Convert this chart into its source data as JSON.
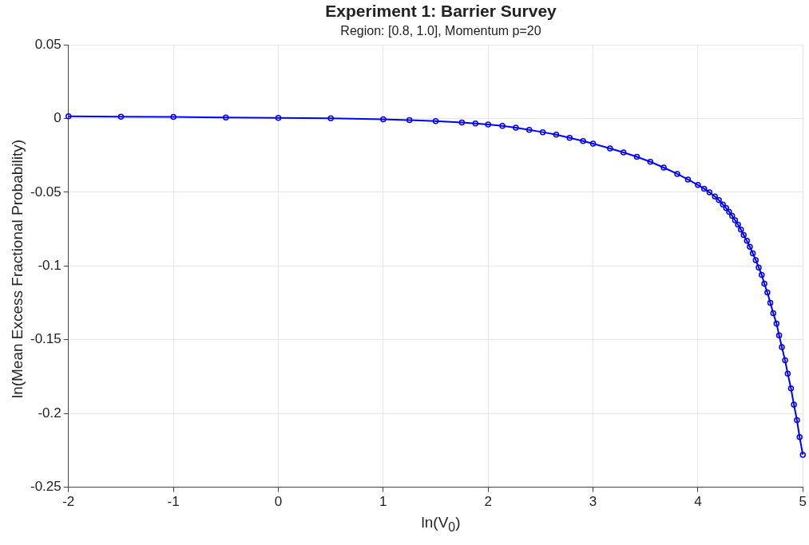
{
  "chart_data": {
    "type": "line",
    "title": "Experiment 1: Barrier Survey",
    "subtitle": "Region: [0.8, 1.0], Momentum p=20",
    "xlabel": "ln(V$_{0}$)",
    "ylabel": "ln(Mean Excess Fractional Probability)",
    "x": [
      -2,
      -1.5,
      -1,
      -0.5,
      0,
      0.5,
      1,
      1.25,
      1.5,
      1.75,
      1.879,
      2.0,
      2.136,
      2.264,
      2.392,
      2.521,
      2.649,
      2.777,
      2.905,
      3.0,
      3.162,
      3.29,
      3.418,
      3.546,
      3.674,
      3.803,
      3.905,
      4.0,
      4.059,
      4.11,
      4.162,
      4.2,
      4.238,
      4.269,
      4.297,
      4.326,
      4.354,
      4.382,
      4.41,
      4.436,
      4.467,
      4.495,
      4.523,
      4.551,
      4.579,
      4.608,
      4.633,
      4.662,
      4.69,
      4.718,
      4.749,
      4.774,
      4.8,
      4.831,
      4.856,
      4.887,
      4.915,
      4.944,
      4.969,
      5
    ],
    "series": [
      {
        "color": "#0000ff",
        "values": [
          0.0014,
          0.0012,
          0.001,
          0.0007,
          0.0004,
          0.0001,
          -0.0006,
          -0.0011,
          -0.0018,
          -0.0028,
          -0.0034,
          -0.0041,
          -0.005,
          -0.0062,
          -0.0077,
          -0.0093,
          -0.011,
          -0.0132,
          -0.0153,
          -0.0171,
          -0.0203,
          -0.023,
          -0.026,
          -0.0294,
          -0.0333,
          -0.0376,
          -0.0414,
          -0.0451,
          -0.0476,
          -0.0501,
          -0.0529,
          -0.0554,
          -0.0583,
          -0.0608,
          -0.0633,
          -0.066,
          -0.069,
          -0.072,
          -0.0754,
          -0.079,
          -0.083,
          -0.087,
          -0.0914,
          -0.096,
          -0.101,
          -0.106,
          -0.112,
          -0.118,
          -0.125,
          -0.132,
          -0.139,
          -0.147,
          -0.155,
          -0.164,
          -0.173,
          -0.183,
          -0.194,
          -0.2045,
          -0.216,
          -0.228
        ]
      }
    ],
    "xlim": [
      -2,
      5
    ],
    "xticks": [
      -2,
      -1,
      0,
      1,
      2,
      3,
      4,
      5
    ],
    "ylim": [
      -0.25,
      0.05
    ],
    "yticks": [
      -0.25,
      -0.2,
      -0.15,
      -0.1,
      -0.05,
      0,
      0.05
    ],
    "grid": true,
    "legend": false,
    "marker": "circle",
    "line_style": "solid"
  }
}
